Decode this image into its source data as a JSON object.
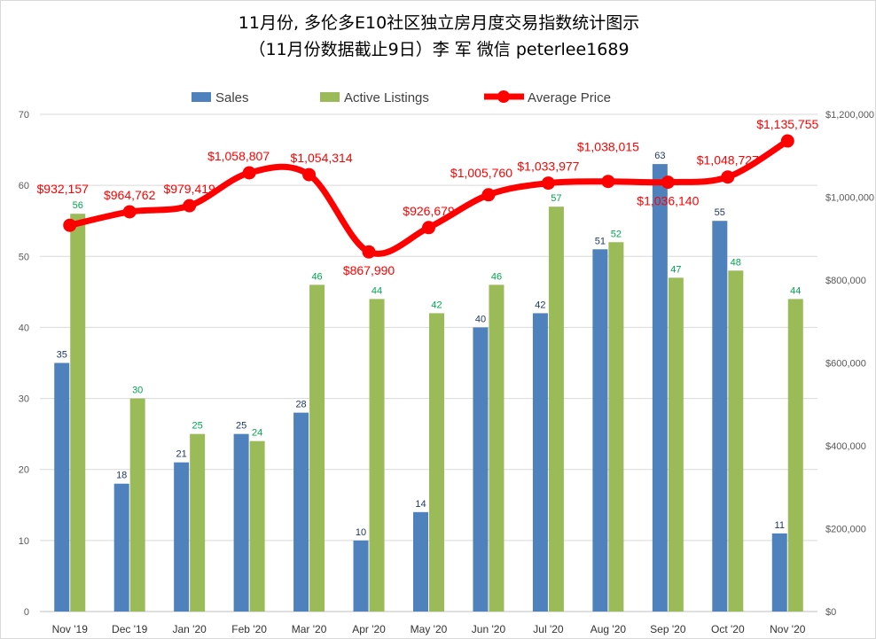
{
  "chart_data": {
    "type": "bar+line",
    "title": "11月份, 多伦多E10社区独立房月度交易指数统计图示",
    "subtitle": "（11月份数据截止9日）李 军  微信  peterlee1689",
    "categories": [
      "Nov '19",
      "Dec '19",
      "Jan '20",
      "Feb '20",
      "Mar '20",
      "Apr '20",
      "May '20",
      "Jun '20",
      "Jul '20",
      "Aug '20",
      "Sep '20",
      "Oct '20",
      "Nov '20"
    ],
    "series": [
      {
        "name": "Sales",
        "type": "bar",
        "axis": "left",
        "color": "#4f81bd",
        "label_color": "#1f3864",
        "values": [
          35,
          18,
          21,
          25,
          28,
          10,
          14,
          40,
          42,
          51,
          63,
          55,
          11
        ]
      },
      {
        "name": "Active Listings",
        "type": "bar",
        "axis": "left",
        "color": "#9bbb59",
        "label_color": "#00a650",
        "values": [
          56,
          30,
          25,
          24,
          46,
          44,
          42,
          46,
          57,
          52,
          47,
          48,
          44
        ]
      },
      {
        "name": "Average Price",
        "type": "line",
        "axis": "right",
        "color": "#ff0000",
        "values": [
          932157,
          964762,
          979419,
          1058807,
          1054314,
          867990,
          926679,
          1005760,
          1033977,
          1038015,
          1036140,
          1048727,
          1135755
        ],
        "labels": [
          "$932,157",
          "$964,762",
          "$979,419",
          "$1,058,807",
          "$1,054,314",
          "$867,990",
          "$926,679",
          "$1,005,760",
          "$1,033,977",
          "$1,038,015",
          "$1,036,140",
          "$1,048,727",
          "$1,135,755"
        ]
      }
    ],
    "y_left": {
      "min": 0,
      "max": 70,
      "step": 10,
      "ticks": [
        "0",
        "10",
        "20",
        "30",
        "40",
        "50",
        "60",
        "70"
      ]
    },
    "y_right": {
      "min": 0,
      "max": 1200000,
      "step": 200000,
      "ticks": [
        "$0",
        "$200,000",
        "$400,000",
        "$600,000",
        "$800,000",
        "$1,000,000",
        "$1,200,000"
      ]
    },
    "legend": {
      "position": "top",
      "entries": [
        "Sales",
        "Active Listings",
        "Average Price"
      ]
    },
    "grid": true
  }
}
